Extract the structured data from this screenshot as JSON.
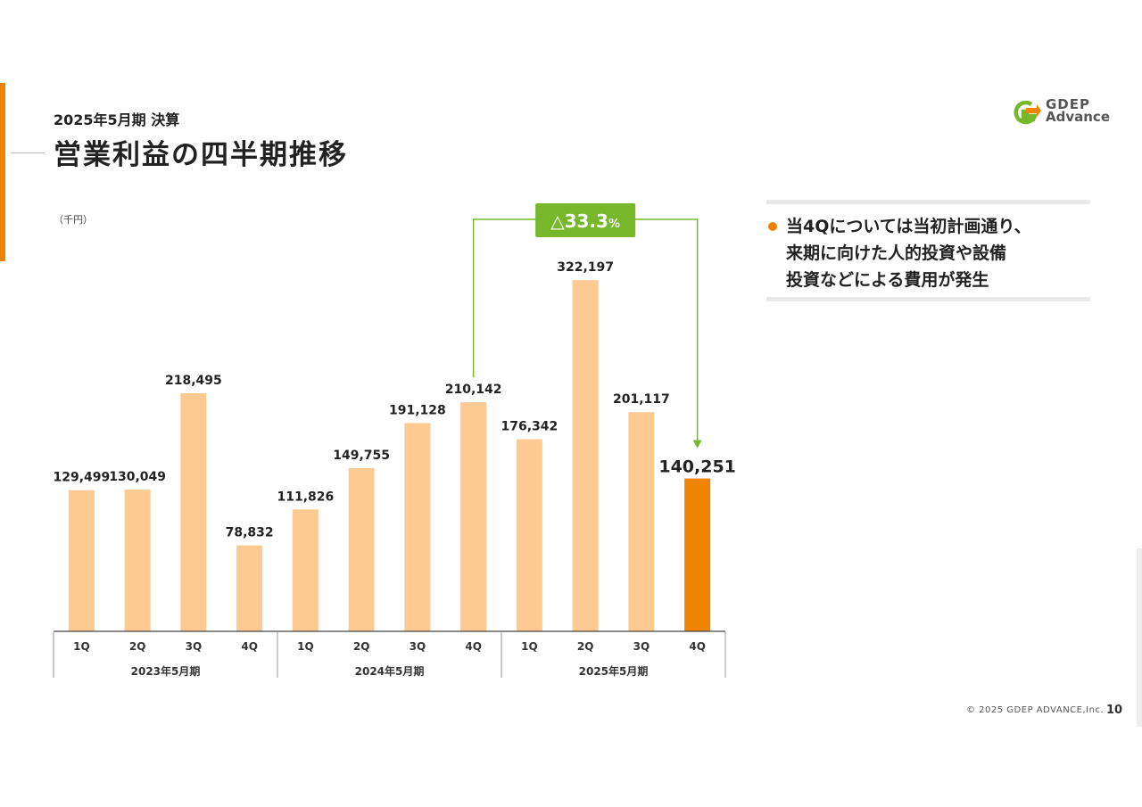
{
  "header": {
    "subtitle": "2025年5月期 決算",
    "title": "営業利益の四半期推移"
  },
  "logo": {
    "line1": "GDEP",
    "line2": "Advance"
  },
  "chart_data": {
    "type": "bar",
    "unit_label": "（千円）",
    "categories": [
      "1Q",
      "2Q",
      "3Q",
      "4Q",
      "1Q",
      "2Q",
      "3Q",
      "4Q",
      "1Q",
      "2Q",
      "3Q",
      "4Q"
    ],
    "groups": [
      {
        "label": "2023年5月期",
        "count": 4
      },
      {
        "label": "2024年5月期",
        "count": 4
      },
      {
        "label": "2025年5月期",
        "count": 4
      }
    ],
    "values": [
      129499,
      130049,
      218495,
      78832,
      111826,
      149755,
      191128,
      210142,
      176342,
      322197,
      201117,
      140251
    ],
    "value_labels": [
      "129,499",
      "130,049",
      "218,495",
      "78,832",
      "111,826",
      "149,755",
      "191,128",
      "210,142",
      "176,342",
      "322,197",
      "201,117",
      "140,251"
    ],
    "ylim": [
      0,
      360000
    ],
    "highlight_index": 11,
    "bar_color": "#fdca92",
    "highlight_color": "#f08300",
    "comparison": {
      "from_index": 7,
      "to_index": 11,
      "label": "△33.3",
      "suffix": "%",
      "color": "#76b82a"
    }
  },
  "note": {
    "lines": [
      "当4Qについては当初計画通り、",
      "来期に向けた人的投資や設備",
      "投資などによる費用が発生"
    ]
  },
  "footer": {
    "copyright": "© 2025 GDEP ADVANCE,Inc.",
    "page": "10"
  }
}
